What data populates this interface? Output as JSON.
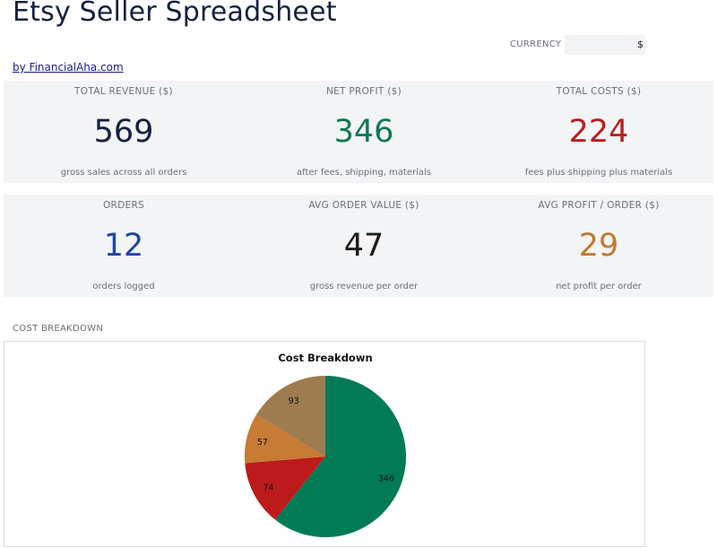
{
  "page": {
    "title": "Etsy Seller Spreadsheet",
    "byline": "by FinancialAha.com",
    "currency_label": "CURRENCY",
    "currency_value": "$"
  },
  "stats": [
    {
      "label": "TOTAL REVENUE ($)",
      "value": "569",
      "sub": "gross sales across all orders",
      "color": "#15213f"
    },
    {
      "label": "NET PROFIT ($)",
      "value": "346",
      "sub": "after fees, shipping, materials",
      "color": "#0f7a55"
    },
    {
      "label": "TOTAL COSTS ($)",
      "value": "224",
      "sub": "fees plus shipping plus materials",
      "color": "#b8201e"
    },
    {
      "label": "ORDERS",
      "value": "12",
      "sub": "orders logged",
      "color": "#2145a6"
    },
    {
      "label": "AVG ORDER VALUE ($)",
      "value": "47",
      "sub": "gross revenue per order",
      "color": "#1b1b1b"
    },
    {
      "label": "AVG PROFIT / ORDER ($)",
      "value": "29",
      "sub": "net profit per order",
      "color": "#c27a30"
    }
  ],
  "section": {
    "cost_breakdown_label": "COST BREAKDOWN"
  },
  "chart_data": {
    "type": "pie",
    "title": "Cost Breakdown",
    "values": [
      346,
      74,
      57,
      93
    ],
    "colors": [
      "#017b55",
      "#bd1b1b",
      "#c77b35",
      "#9f7b50"
    ],
    "start_angle_deg": 0,
    "direction": "clockwise"
  }
}
